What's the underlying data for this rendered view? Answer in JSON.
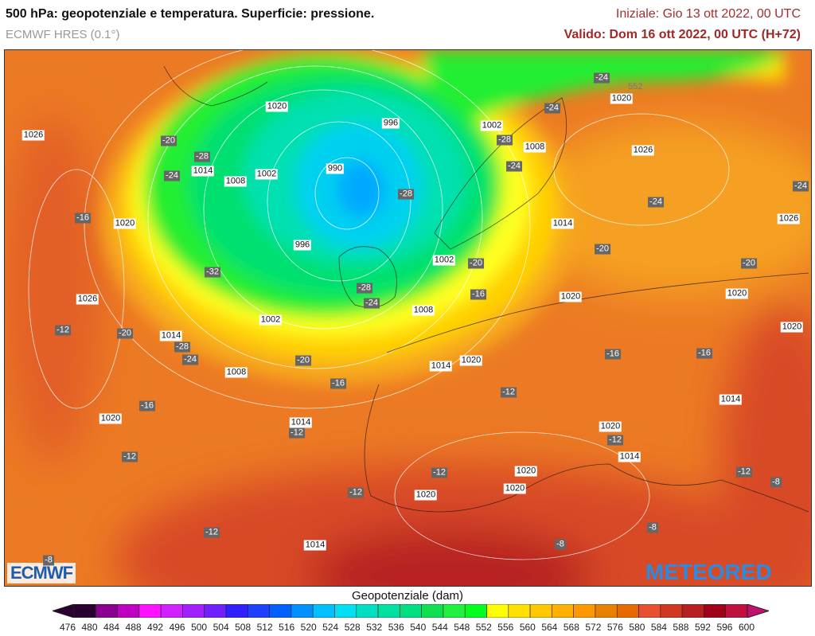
{
  "header": {
    "title": "500 hPa: geopotenziale e temperatura. Superficie: pressione.",
    "model": "ECMWF HRES (0.1°)",
    "initial": "Iniziale: Gio 13 ott 2022, 00 UTC",
    "valid": "Valido: Dom 16 ott 2022, 00 UTC (H+72)"
  },
  "map": {
    "isoline_label": "552",
    "labels": [
      {
        "text": "1020",
        "kind": "pressure"
      },
      {
        "text": "996",
        "kind": "pressure"
      },
      {
        "text": "1002",
        "kind": "pressure"
      },
      {
        "text": "1008",
        "kind": "pressure"
      },
      {
        "text": "1020",
        "kind": "pressure"
      },
      {
        "text": "1026",
        "kind": "pressure"
      },
      {
        "text": "1026",
        "kind": "pressure"
      },
      {
        "text": "990",
        "kind": "pressure"
      },
      {
        "text": "1014",
        "kind": "pressure"
      },
      {
        "text": "1002",
        "kind": "pressure"
      },
      {
        "text": "1008",
        "kind": "pressure"
      },
      {
        "text": "1020",
        "kind": "pressure"
      },
      {
        "text": "996",
        "kind": "pressure"
      },
      {
        "text": "1014",
        "kind": "pressure"
      },
      {
        "text": "1026",
        "kind": "pressure"
      },
      {
        "text": "1002",
        "kind": "pressure"
      },
      {
        "text": "1026",
        "kind": "pressure"
      },
      {
        "text": "1020",
        "kind": "pressure"
      },
      {
        "text": "1020",
        "kind": "pressure"
      },
      {
        "text": "1008",
        "kind": "pressure"
      },
      {
        "text": "1002",
        "kind": "pressure"
      },
      {
        "text": "1020",
        "kind": "pressure"
      },
      {
        "text": "1014",
        "kind": "pressure"
      },
      {
        "text": "1008",
        "kind": "pressure"
      },
      {
        "text": "1014",
        "kind": "pressure"
      },
      {
        "text": "1020",
        "kind": "pressure"
      },
      {
        "text": "1014",
        "kind": "pressure"
      },
      {
        "text": "1020",
        "kind": "pressure"
      },
      {
        "text": "1014",
        "kind": "pressure"
      },
      {
        "text": "1020",
        "kind": "pressure"
      },
      {
        "text": "1014",
        "kind": "pressure"
      },
      {
        "text": "1020",
        "kind": "pressure"
      },
      {
        "text": "1020",
        "kind": "pressure"
      },
      {
        "text": "1020",
        "kind": "pressure"
      },
      {
        "text": "1014",
        "kind": "pressure"
      },
      {
        "text": "-20",
        "kind": "temperature"
      },
      {
        "text": "-28",
        "kind": "temperature"
      },
      {
        "text": "-24",
        "kind": "temperature"
      },
      {
        "text": "-28",
        "kind": "temperature"
      },
      {
        "text": "-24",
        "kind": "temperature"
      },
      {
        "text": "-24",
        "kind": "temperature"
      },
      {
        "text": "-24",
        "kind": "temperature"
      },
      {
        "text": "-28",
        "kind": "temperature"
      },
      {
        "text": "-24",
        "kind": "temperature"
      },
      {
        "text": "-16",
        "kind": "temperature"
      },
      {
        "text": "-24",
        "kind": "temperature"
      },
      {
        "text": "-20",
        "kind": "temperature"
      },
      {
        "text": "-20",
        "kind": "temperature"
      },
      {
        "text": "-32",
        "kind": "temperature"
      },
      {
        "text": "-20",
        "kind": "temperature"
      },
      {
        "text": "-16",
        "kind": "temperature"
      },
      {
        "text": "-28",
        "kind": "temperature"
      },
      {
        "text": "-24",
        "kind": "temperature"
      },
      {
        "text": "-12",
        "kind": "temperature"
      },
      {
        "text": "-20",
        "kind": "temperature"
      },
      {
        "text": "-28",
        "kind": "temperature"
      },
      {
        "text": "-24",
        "kind": "temperature"
      },
      {
        "text": "-20",
        "kind": "temperature"
      },
      {
        "text": "-16",
        "kind": "temperature"
      },
      {
        "text": "-16",
        "kind": "temperature"
      },
      {
        "text": "-16",
        "kind": "temperature"
      },
      {
        "text": "-12",
        "kind": "temperature"
      },
      {
        "text": "-16",
        "kind": "temperature"
      },
      {
        "text": "-12",
        "kind": "temperature"
      },
      {
        "text": "-12",
        "kind": "temperature"
      },
      {
        "text": "-12",
        "kind": "temperature"
      },
      {
        "text": "-12",
        "kind": "temperature"
      },
      {
        "text": "-12",
        "kind": "temperature"
      },
      {
        "text": "-8",
        "kind": "temperature"
      },
      {
        "text": "-12",
        "kind": "temperature"
      },
      {
        "text": "-8",
        "kind": "temperature"
      },
      {
        "text": "-12",
        "kind": "temperature"
      },
      {
        "text": "-8",
        "kind": "temperature"
      },
      {
        "text": "-8",
        "kind": "temperature"
      }
    ]
  },
  "logos": {
    "left": "ECMWF",
    "right": "METEORED"
  },
  "colorbar": {
    "title": "Geopotenziale (dam)",
    "ticks": [
      "476",
      "480",
      "484",
      "488",
      "492",
      "496",
      "500",
      "504",
      "508",
      "512",
      "516",
      "520",
      "524",
      "528",
      "532",
      "536",
      "540",
      "544",
      "548",
      "552",
      "556",
      "560",
      "564",
      "568",
      "572",
      "576",
      "580",
      "584",
      "588",
      "592",
      "596",
      "600"
    ],
    "colors": [
      "#2a0030",
      "#8a0090",
      "#c000c0",
      "#ff10ff",
      "#d020ff",
      "#a020ff",
      "#7020ff",
      "#3020ff",
      "#2040ff",
      "#0060ff",
      "#0090ff",
      "#00c0ff",
      "#00e0f0",
      "#00e0c0",
      "#00e0a0",
      "#00e080",
      "#10e050",
      "#20f040",
      "#00ff20",
      "#ffff00",
      "#ffe000",
      "#ffc800",
      "#ffb000",
      "#ff9800",
      "#e88000",
      "#e86800",
      "#e85030",
      "#d03820",
      "#b82020",
      "#a00018",
      "#c01040"
    ],
    "low_arrow_color": "#2a0030",
    "high_arrow_color": "#c01070"
  }
}
